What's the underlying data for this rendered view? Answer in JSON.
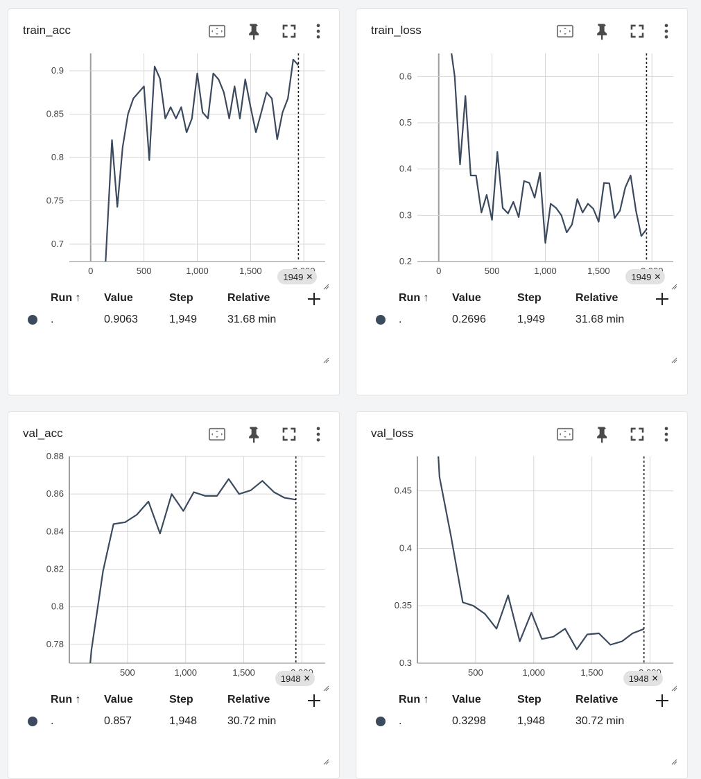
{
  "colors": {
    "series": "#3c4a5e",
    "grid": "#d6d6d6",
    "axis": "#9e9e9e",
    "card_bg": "#ffffff",
    "page_bg": "#f3f4f6"
  },
  "table_headers": {
    "run": "Run ↑",
    "value": "Value",
    "step": "Step",
    "relative": "Relative"
  },
  "icons": {
    "fit": "fit-domain-icon",
    "pin": "pin-icon",
    "fullscreen": "fullscreen-icon",
    "more": "more-vert-icon",
    "add": "add-column-icon"
  },
  "cards": [
    {
      "title": "train_acc",
      "tooltip": "1949",
      "row": {
        "run": ".",
        "value": "0.9063",
        "step": "1,949",
        "relative": "31.68 min"
      },
      "chart_data": {
        "type": "line",
        "xlim": [
          -200,
          2200
        ],
        "ylim": [
          0.68,
          0.92
        ],
        "xticks": [
          0,
          500,
          1000,
          1500,
          2000
        ],
        "xtick_labels": [
          "0",
          "500",
          "1,000",
          "1,500",
          "2,000"
        ],
        "yticks": [
          0.7,
          0.75,
          0.8,
          0.85,
          0.9
        ],
        "ytick_labels": [
          "0.7",
          "0.75",
          "0.8",
          "0.85",
          "0.9"
        ],
        "cursor_x": 1949,
        "series": [
          {
            "values": [
              [
                140,
                0.68
              ],
              [
                200,
                0.82
              ],
              [
                250,
                0.743
              ],
              [
                300,
                0.812
              ],
              [
                350,
                0.85
              ],
              [
                400,
                0.868
              ],
              [
                450,
                0.875
              ],
              [
                500,
                0.882
              ],
              [
                550,
                0.797
              ],
              [
                600,
                0.905
              ],
              [
                650,
                0.891
              ],
              [
                700,
                0.845
              ],
              [
                750,
                0.858
              ],
              [
                800,
                0.845
              ],
              [
                850,
                0.858
              ],
              [
                900,
                0.829
              ],
              [
                950,
                0.845
              ],
              [
                1000,
                0.897
              ],
              [
                1050,
                0.852
              ],
              [
                1100,
                0.845
              ],
              [
                1150,
                0.897
              ],
              [
                1200,
                0.89
              ],
              [
                1250,
                0.875
              ],
              [
                1300,
                0.845
              ],
              [
                1350,
                0.882
              ],
              [
                1400,
                0.845
              ],
              [
                1450,
                0.89
              ],
              [
                1500,
                0.858
              ],
              [
                1550,
                0.829
              ],
              [
                1600,
                0.852
              ],
              [
                1650,
                0.875
              ],
              [
                1700,
                0.868
              ],
              [
                1750,
                0.821
              ],
              [
                1800,
                0.852
              ],
              [
                1850,
                0.868
              ],
              [
                1900,
                0.913
              ],
              [
                1949,
                0.9063
              ]
            ]
          }
        ]
      }
    },
    {
      "title": "train_loss",
      "tooltip": "1949",
      "row": {
        "run": ".",
        "value": "0.2696",
        "step": "1,949",
        "relative": "31.68 min"
      },
      "chart_data": {
        "type": "line",
        "xlim": [
          -200,
          2200
        ],
        "ylim": [
          0.2,
          0.65
        ],
        "xticks": [
          0,
          500,
          1000,
          1500,
          2000
        ],
        "xtick_labels": [
          "0",
          "500",
          "1,000",
          "1,500",
          "2,000"
        ],
        "yticks": [
          0.2,
          0.3,
          0.4,
          0.5,
          0.6
        ],
        "ytick_labels": [
          "0.2",
          "0.3",
          "0.4",
          "0.5",
          "0.6"
        ],
        "cursor_x": 1949,
        "series": [
          {
            "values": [
              [
                120,
                0.65
              ],
              [
                150,
                0.6
              ],
              [
                200,
                0.41
              ],
              [
                250,
                0.558
              ],
              [
                300,
                0.386
              ],
              [
                350,
                0.386
              ],
              [
                400,
                0.306
              ],
              [
                450,
                0.344
              ],
              [
                500,
                0.29
              ],
              [
                550,
                0.437
              ],
              [
                600,
                0.316
              ],
              [
                650,
                0.304
              ],
              [
                700,
                0.329
              ],
              [
                750,
                0.296
              ],
              [
                800,
                0.374
              ],
              [
                850,
                0.37
              ],
              [
                900,
                0.338
              ],
              [
                950,
                0.392
              ],
              [
                1000,
                0.24
              ],
              [
                1050,
                0.325
              ],
              [
                1100,
                0.316
              ],
              [
                1150,
                0.3
              ],
              [
                1200,
                0.263
              ],
              [
                1250,
                0.28
              ],
              [
                1300,
                0.335
              ],
              [
                1350,
                0.306
              ],
              [
                1400,
                0.325
              ],
              [
                1450,
                0.314
              ],
              [
                1500,
                0.286
              ],
              [
                1550,
                0.37
              ],
              [
                1600,
                0.369
              ],
              [
                1650,
                0.294
              ],
              [
                1700,
                0.31
              ],
              [
                1750,
                0.36
              ],
              [
                1800,
                0.386
              ],
              [
                1850,
                0.31
              ],
              [
                1900,
                0.255
              ],
              [
                1949,
                0.2696
              ]
            ]
          }
        ]
      }
    },
    {
      "title": "val_acc",
      "tooltip": "1948",
      "row": {
        "run": ".",
        "value": "0.857",
        "step": "1,948",
        "relative": "30.72 min"
      },
      "chart_data": {
        "type": "line",
        "xlim": [
          0,
          2200
        ],
        "ylim": [
          0.77,
          0.88
        ],
        "xticks": [
          0,
          500,
          1000,
          1500,
          2000
        ],
        "xtick_labels": [
          "",
          "500",
          "1,000",
          "1,500",
          "2,000"
        ],
        "yticks": [
          0.78,
          0.8,
          0.82,
          0.84,
          0.86,
          0.88
        ],
        "ytick_labels": [
          "0.78",
          "0.8",
          "0.82",
          "0.84",
          "0.86",
          "0.88"
        ],
        "cursor_x": 1948,
        "series": [
          {
            "values": [
              [
                180,
                0.77
              ],
              [
                190,
                0.777
              ],
              [
                290,
                0.819
              ],
              [
                380,
                0.844
              ],
              [
                480,
                0.845
              ],
              [
                580,
                0.849
              ],
              [
                680,
                0.856
              ],
              [
                780,
                0.839
              ],
              [
                880,
                0.86
              ],
              [
                980,
                0.851
              ],
              [
                1070,
                0.861
              ],
              [
                1170,
                0.859
              ],
              [
                1270,
                0.859
              ],
              [
                1370,
                0.868
              ],
              [
                1460,
                0.86
              ],
              [
                1560,
                0.862
              ],
              [
                1660,
                0.867
              ],
              [
                1760,
                0.861
              ],
              [
                1850,
                0.858
              ],
              [
                1948,
                0.857
              ]
            ]
          }
        ]
      }
    },
    {
      "title": "val_loss",
      "tooltip": "1948",
      "row": {
        "run": ".",
        "value": "0.3298",
        "step": "1,948",
        "relative": "30.72 min"
      },
      "chart_data": {
        "type": "line",
        "xlim": [
          0,
          2200
        ],
        "ylim": [
          0.3,
          0.48
        ],
        "xticks": [
          0,
          500,
          1000,
          1500,
          2000
        ],
        "xtick_labels": [
          "",
          "500",
          "1,000",
          "1,500",
          "2,000"
        ],
        "yticks": [
          0.3,
          0.35,
          0.4,
          0.45
        ],
        "ytick_labels": [
          "0.3",
          "0.35",
          "0.4",
          "0.45"
        ],
        "cursor_x": 1948,
        "series": [
          {
            "values": [
              [
                180,
                0.48
              ],
              [
                190,
                0.462
              ],
              [
                290,
                0.41
              ],
              [
                390,
                0.353
              ],
              [
                480,
                0.35
              ],
              [
                580,
                0.343
              ],
              [
                680,
                0.33
              ],
              [
                780,
                0.359
              ],
              [
                880,
                0.319
              ],
              [
                980,
                0.344
              ],
              [
                1070,
                0.321
              ],
              [
                1170,
                0.323
              ],
              [
                1270,
                0.33
              ],
              [
                1370,
                0.312
              ],
              [
                1460,
                0.325
              ],
              [
                1560,
                0.326
              ],
              [
                1660,
                0.316
              ],
              [
                1760,
                0.319
              ],
              [
                1850,
                0.326
              ],
              [
                1948,
                0.3298
              ]
            ]
          }
        ]
      }
    }
  ]
}
